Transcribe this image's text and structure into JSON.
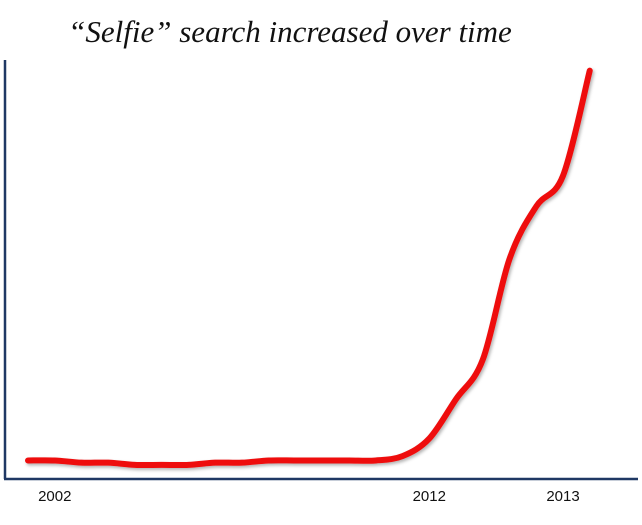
{
  "chart_data": {
    "type": "line",
    "title": "“Selfie” search increased over time",
    "categories": [
      null,
      "2002",
      null,
      null,
      null,
      null,
      null,
      null,
      null,
      null,
      null,
      null,
      null,
      null,
      null,
      "2012",
      null,
      null,
      null,
      null,
      "2013",
      null
    ],
    "values": [
      4,
      4,
      3.5,
      3.5,
      3,
      3,
      3,
      3.5,
      3.5,
      4,
      4,
      4,
      4,
      4,
      5,
      9,
      18,
      27,
      50,
      62,
      69,
      93
    ],
    "color": "#ee1111",
    "ylim": [
      0,
      100
    ]
  }
}
